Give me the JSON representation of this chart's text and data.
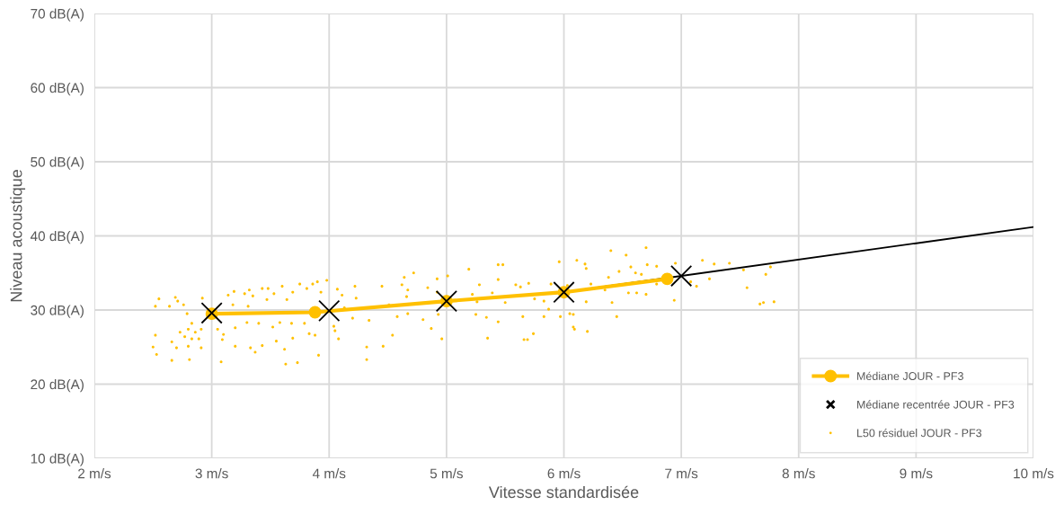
{
  "chart_data": {
    "type": "scatter",
    "xlabel": "Vitesse standardisée",
    "ylabel": "Niveau acoustique",
    "xlim": [
      2,
      10
    ],
    "xticks": [
      {
        "value": 2,
        "label": "2 m/s"
      },
      {
        "value": 3,
        "label": "3 m/s"
      },
      {
        "value": 4,
        "label": "4 m/s"
      },
      {
        "value": 5,
        "label": "5 m/s"
      },
      {
        "value": 6,
        "label": "6 m/s"
      },
      {
        "value": 7,
        "label": "7 m/s"
      },
      {
        "value": 8,
        "label": "8 m/s"
      },
      {
        "value": 9,
        "label": "9 m/s"
      },
      {
        "value": 10,
        "label": "10 m/s"
      }
    ],
    "ylim": [
      10,
      70
    ],
    "yticks": [
      {
        "value": 10,
        "label": "10 dB(A)"
      },
      {
        "value": 20,
        "label": "20 dB(A)"
      },
      {
        "value": 30,
        "label": "30 dB(A)"
      },
      {
        "value": 40,
        "label": "40 dB(A)"
      },
      {
        "value": 50,
        "label": "50 dB(A)"
      },
      {
        "value": 60,
        "label": "60 dB(A)"
      },
      {
        "value": 70,
        "label": "70 dB(A)"
      }
    ],
    "grid": true,
    "legend": "bottom right",
    "series": [
      {
        "name": "Médiane JOUR - PF3",
        "type": "line",
        "marker": "circle",
        "color": "#ffc000",
        "x": [
          3.0,
          3.88,
          5.0,
          6.0,
          6.88
        ],
        "values": [
          29.5,
          29.7,
          31.2,
          32.4,
          34.2
        ]
      },
      {
        "name": "Médiane recentrée JOUR - PF3",
        "marker": "cross",
        "color": "#000000",
        "x": [
          3,
          4,
          5,
          6,
          7
        ],
        "values": [
          29.6,
          29.9,
          31.2,
          32.4,
          34.6
        ]
      },
      {
        "name": "L50 résiduel JOUR - PF3",
        "marker": "circle",
        "color": "#ffc000",
        "x": [
          2.55,
          2.52,
          2.64,
          2.69,
          2.71,
          2.76,
          2.92,
          2.79,
          2.83,
          2.52,
          2.5,
          2.53,
          2.66,
          2.7,
          2.66,
          2.73,
          2.77,
          2.8,
          2.8,
          2.83,
          2.86,
          2.89,
          2.91,
          2.91,
          2.81,
          3.05,
          3.1,
          3.09,
          3.14,
          3.19,
          3.18,
          3.2,
          3.2,
          3.08,
          3.28,
          3.32,
          3.35,
          3.31,
          3.43,
          3.48,
          3.47,
          3.53,
          3.6,
          3.64,
          3.69,
          3.75,
          3.81,
          3.86,
          3.9,
          3.98,
          3.93,
          4.07,
          4.11,
          3.3,
          3.4,
          3.52,
          3.58,
          3.68,
          3.79,
          3.83,
          3.88,
          3.69,
          3.55,
          3.62,
          3.33,
          3.37,
          3.43,
          3.63,
          3.73,
          3.91,
          4.05,
          4.08,
          4.04,
          4.22,
          4.23,
          4.13,
          4.2,
          4.32,
          4.32,
          4.34,
          4.45,
          4.46,
          4.51,
          4.54,
          4.58,
          4.62,
          4.64,
          4.67,
          4.66,
          4.67,
          4.72,
          4.8,
          4.84,
          4.87,
          4.92,
          4.96,
          5.01,
          4.92,
          4.93,
          5.19,
          5.22,
          5.26,
          5.28,
          5.25,
          5.34,
          5.35,
          5.39,
          5.44,
          5.44,
          5.48,
          5.44,
          5.5,
          5.59,
          5.63,
          5.7,
          5.65,
          5.66,
          5.69,
          5.74,
          5.75,
          5.83,
          5.83,
          5.87,
          5.89,
          5.96,
          5.97,
          6.03,
          6.05,
          6.08,
          6.08,
          6.09,
          6.11,
          6.18,
          6.19,
          6.2,
          6.23,
          6.19,
          6.35,
          6.38,
          6.41,
          6.4,
          6.45,
          6.47,
          6.53,
          6.55,
          6.57,
          6.61,
          6.62,
          6.66,
          6.7,
          6.71,
          6.7,
          6.79,
          6.79,
          6.94,
          6.95,
          7.08,
          7.13,
          7.18,
          7.24,
          7.28,
          7.41,
          7.53,
          7.56,
          7.67,
          7.7,
          7.72,
          7.76,
          7.79
        ],
        "values": [
          31.5,
          30.5,
          30.5,
          31.7,
          31.2,
          30.7,
          31.6,
          29.5,
          28.2,
          26.6,
          25.0,
          24.0,
          25.7,
          24.9,
          23.2,
          27.0,
          26.4,
          27.4,
          25.1,
          26.1,
          27.0,
          26.1,
          27.4,
          24.9,
          23.3,
          27.4,
          26.7,
          26.0,
          32.0,
          32.5,
          30.7,
          27.6,
          25.1,
          23.0,
          32.2,
          32.7,
          31.9,
          30.5,
          32.9,
          32.9,
          31.4,
          32.2,
          33.2,
          31.4,
          32.4,
          33.5,
          32.9,
          33.5,
          33.8,
          34.0,
          32.4,
          32.8,
          32.0,
          28.3,
          28.2,
          27.7,
          28.3,
          28.2,
          28.2,
          26.8,
          26.6,
          26.2,
          25.8,
          24.7,
          24.9,
          24.3,
          25.2,
          22.7,
          22.9,
          23.9,
          27.2,
          26.1,
          27.8,
          33.2,
          31.6,
          30.3,
          28.9,
          25.0,
          23.3,
          28.6,
          33.2,
          25.1,
          30.7,
          26.6,
          29.1,
          33.4,
          34.4,
          32.7,
          31.8,
          29.5,
          35.0,
          28.7,
          33.0,
          27.5,
          34.2,
          26.1,
          34.6,
          32.4,
          29.4,
          35.5,
          32.1,
          31.1,
          33.4,
          29.4,
          29.0,
          26.2,
          32.3,
          34.1,
          36.1,
          36.1,
          28.4,
          31.0,
          33.4,
          33.1,
          33.6,
          29.1,
          26.0,
          26.0,
          26.8,
          31.5,
          31.2,
          29.1,
          30.1,
          33.5,
          36.5,
          29.1,
          33.3,
          29.5,
          29.4,
          27.7,
          27.4,
          36.7,
          36.2,
          35.6,
          27.1,
          33.5,
          31.1,
          32.7,
          34.4,
          31.0,
          38.0,
          29.1,
          35.2,
          37.4,
          32.3,
          35.8,
          35.0,
          32.3,
          34.8,
          38.4,
          36.1,
          32.1,
          35.9,
          33.5,
          31.3,
          36.3,
          33.8,
          33.2,
          36.7,
          34.2,
          36.2,
          36.3,
          35.4,
          33.0,
          30.8,
          31.0,
          34.8,
          35.8,
          31.1
        ]
      },
      {
        "type": "line",
        "color": "#000000",
        "x": [
          6,
          10
        ],
        "values": [
          32.4,
          41.2
        ]
      }
    ]
  }
}
